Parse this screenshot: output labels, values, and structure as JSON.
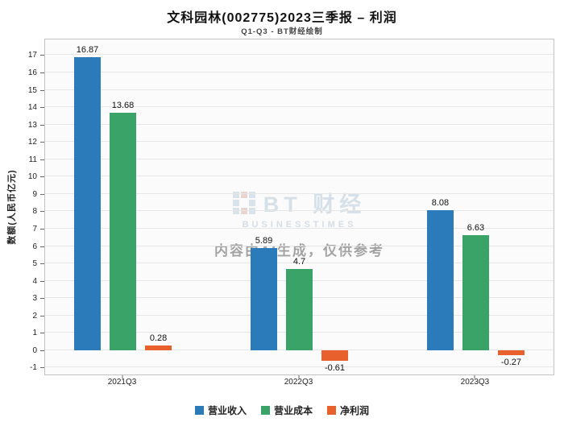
{
  "title": "文科园林(002775)2023三季报 – 利润",
  "subtitle": "Q1-Q3 - BT财经绘制",
  "watermark": {
    "logo_text": "BT 财经",
    "logo_sub": "BUSINESSTIMES",
    "notice": "内容由AI生成，仅供参考"
  },
  "chart_data": {
    "type": "bar",
    "title": "文科园林(002775)2023三季报 – 利润",
    "subtitle": "Q1-Q3 - BT财经绘制",
    "categories": [
      "2021Q3",
      "2022Q3",
      "2023Q3"
    ],
    "series": [
      {
        "name": "营业收入",
        "color": "#2b7bba",
        "values": [
          16.87,
          5.89,
          8.08
        ]
      },
      {
        "name": "营业成本",
        "color": "#3aa368",
        "values": [
          13.68,
          4.7,
          6.63
        ]
      },
      {
        "name": "净利润",
        "color": "#e8612c",
        "values": [
          0.28,
          -0.61,
          -0.27
        ]
      }
    ],
    "xlabel": "",
    "ylabel": "数额(人民币亿元)",
    "ylim": [
      -1.4,
      17.9
    ],
    "ytick_min": -1,
    "ytick_max": 17,
    "ytick_step": 1,
    "grid": true,
    "legend_position": "bottom",
    "group_centers": [
      0.153,
      0.5,
      0.847
    ]
  }
}
